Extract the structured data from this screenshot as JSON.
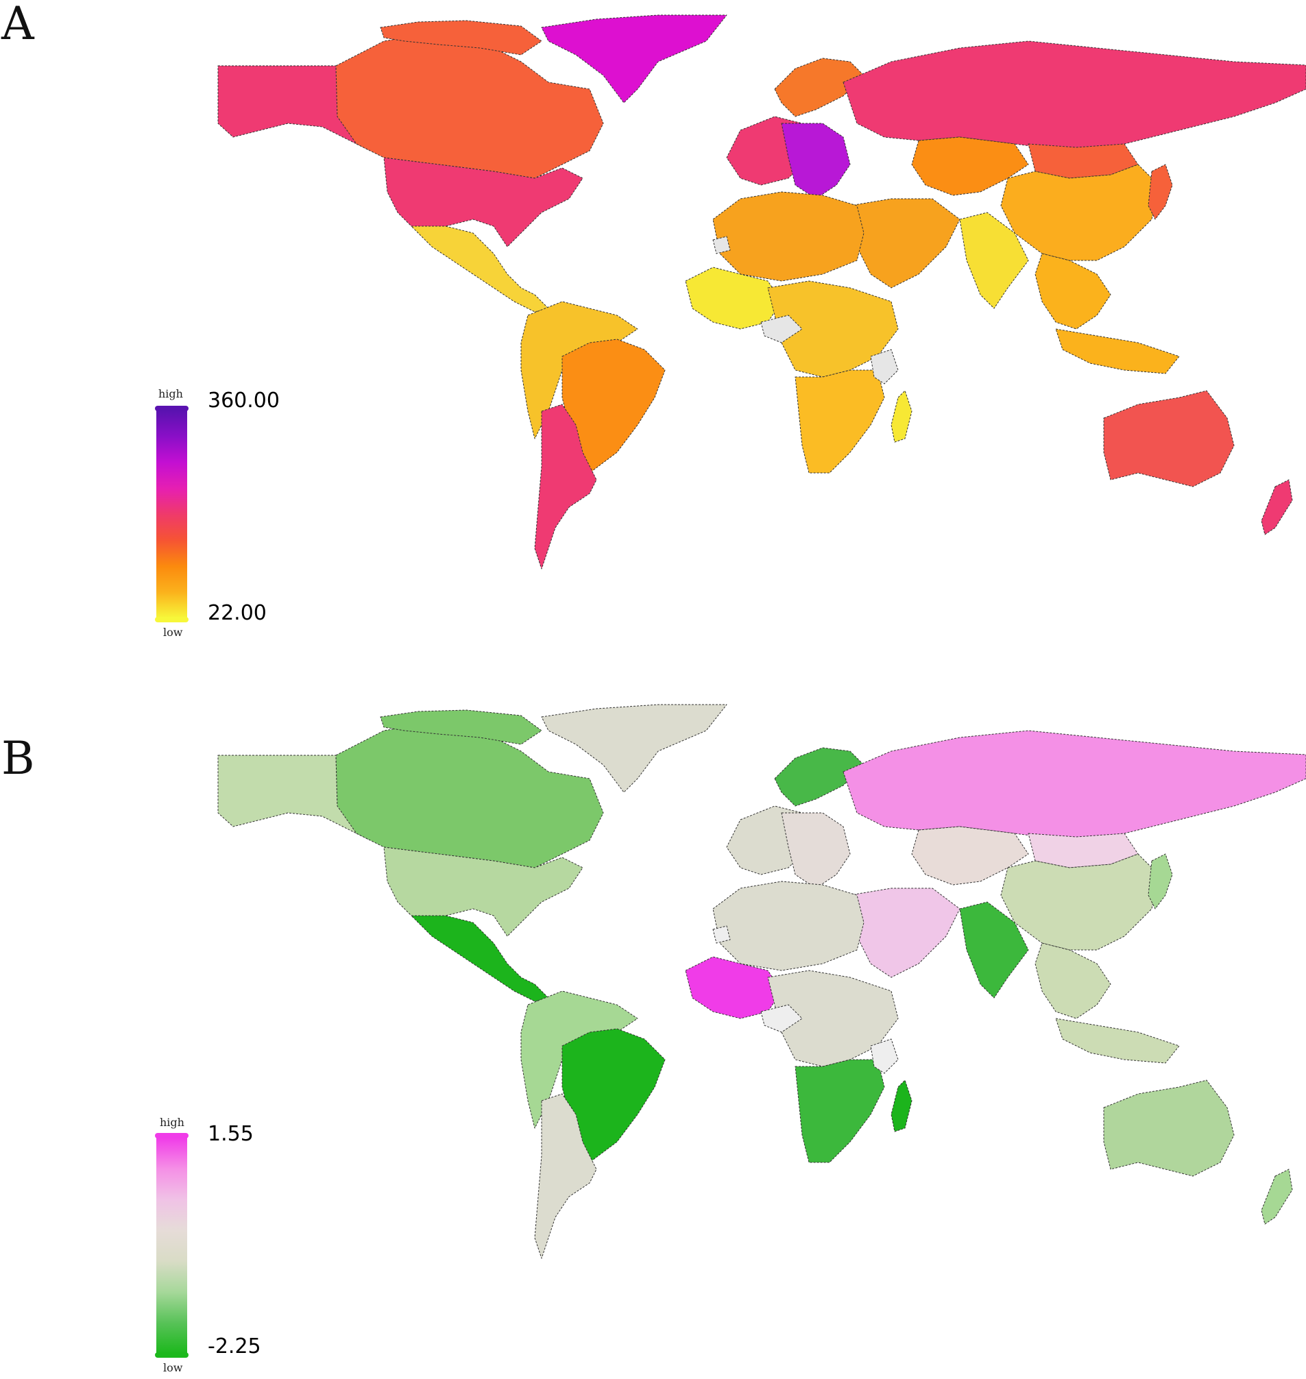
{
  "panels": [
    {
      "label": "A",
      "legend": {
        "max_label": "360.00",
        "min_label": "22.00",
        "high_text": "high",
        "low_text": "low",
        "max_value": 360.0,
        "min_value": 22.0,
        "gradient": [
          "#f7f73a",
          "#fbb21c",
          "#fb8a0e",
          "#f65433",
          "#ef3a6a",
          "#e61fb2",
          "#c30fd2",
          "#8a0fc7",
          "#5a12b0"
        ]
      },
      "colors": {
        "greenland": "#dd10d0",
        "north_america_north": "#f6613a",
        "alaska": "#ef3a72",
        "usa": "#ef3a72",
        "mexico_central": "#f7d338",
        "south_america_north": "#f7c22a",
        "brazil": "#fb8e14",
        "south_america_south": "#ef3a72",
        "europe_west": "#ef3a72",
        "europe_central": "#b818d6",
        "europe_nordic": "#f6782a",
        "russia": "#ef3a72",
        "central_asia": "#fb8e14",
        "mongolia": "#f6613a",
        "china": "#fbad1e",
        "middle_east": "#f7a21e",
        "india": "#f7df34",
        "southeast_asia": "#fbb21c",
        "japan": "#f6613a",
        "north_africa": "#f7a21e",
        "west_africa": "#f7e834",
        "central_africa": "#f7c22a",
        "southern_africa": "#fbbc24",
        "madagascar": "#f7e834",
        "australia": "#f25450",
        "new_zealand": "#ef3a72",
        "nodata": "#e6e6e6"
      }
    },
    {
      "label": "B",
      "legend": {
        "max_label": "1.55",
        "min_label": "-2.25",
        "high_text": "high",
        "low_text": "low",
        "max_value": 1.55,
        "min_value": -2.25,
        "gradient": [
          "#1cb81c",
          "#58c258",
          "#a6d89a",
          "#d9dcc6",
          "#e6dcd8",
          "#f0c2e6",
          "#f58fe6",
          "#f03ce8"
        ]
      },
      "colors": {
        "greenland": "#dcdccf",
        "north_america_north": "#7cc86a",
        "alaska": "#c2dcac",
        "usa": "#b6d8a0",
        "mexico_central": "#1cb41c",
        "south_america_north": "#a6d894",
        "brazil": "#1cb41c",
        "south_america_south": "#dcdccf",
        "europe_west": "#dcdccf",
        "europe_central": "#e4dcd8",
        "europe_nordic": "#48b848",
        "russia": "#f490e6",
        "central_asia": "#e8dcd8",
        "mongolia": "#f0d2e6",
        "china": "#ccdcb4",
        "middle_east": "#f0c6e8",
        "india": "#3cb83c",
        "southeast_asia": "#ccdcb4",
        "japan": "#a6d894",
        "north_africa": "#dcdccf",
        "west_africa": "#f03ce8",
        "central_africa": "#dcdccf",
        "southern_africa": "#3cb83c",
        "madagascar": "#1cb41c",
        "australia": "#b0d69c",
        "new_zealand": "#a6d894",
        "nodata": "#eeeeee"
      }
    }
  ]
}
